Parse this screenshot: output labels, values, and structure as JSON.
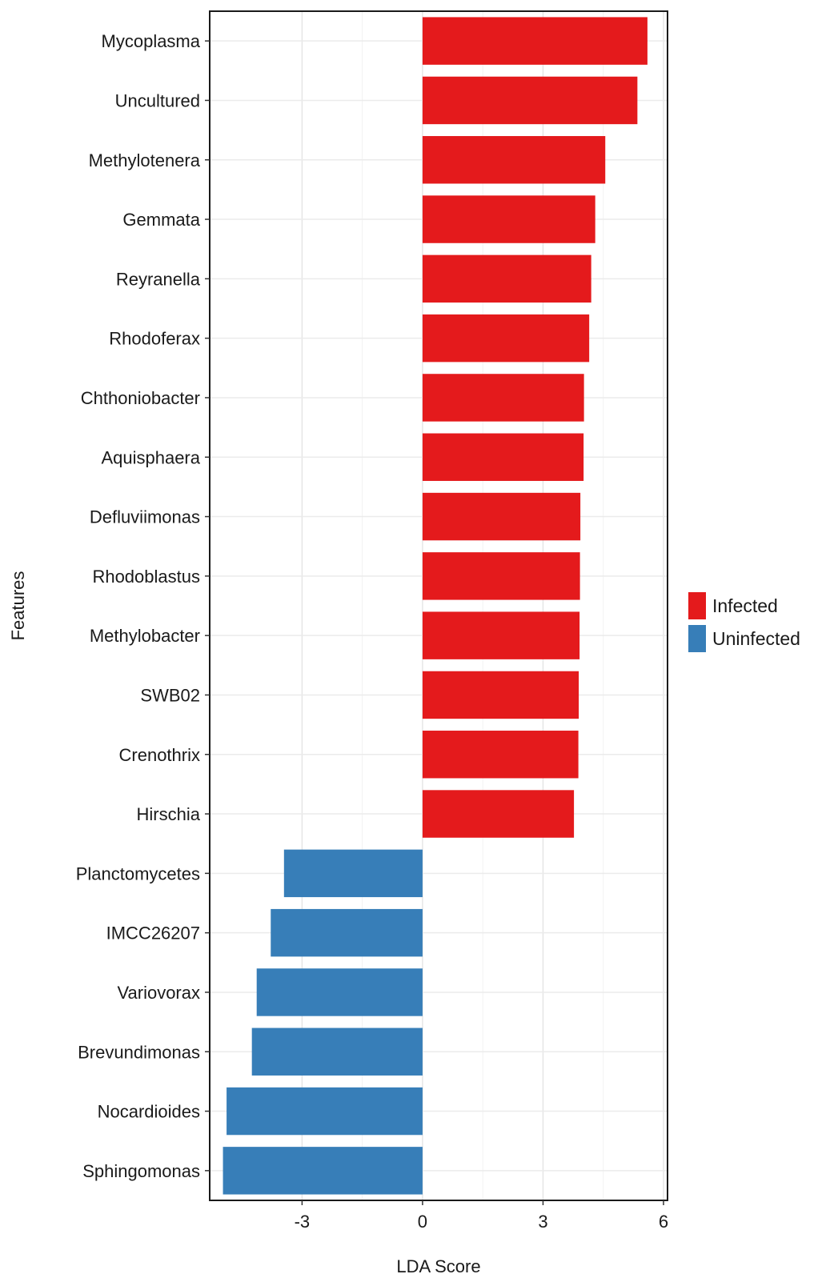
{
  "chart_data": {
    "type": "bar",
    "orientation": "horizontal",
    "xlabel": "LDA Score",
    "ylabel": "Features",
    "xlim": [
      -5.3,
      6.1
    ],
    "xticks": [
      -3,
      0,
      3,
      6
    ],
    "grid": true,
    "legend_position": "right",
    "categories": [
      "Mycoplasma",
      "Uncultured",
      "Methylotenera",
      "Gemmata",
      "Reyranella",
      "Rhodoferax",
      "Chthoniobacter",
      "Aquisphaera",
      "Defluviimonas",
      "Rhodoblastus",
      "Methylobacter",
      "SWB02",
      "Crenothrix",
      "Hirschia",
      "Planctomycetes",
      "IMCC26207",
      "Variovorax",
      "Brevundimonas",
      "Nocardioides",
      "Sphingomonas"
    ],
    "values": [
      5.6,
      5.35,
      4.55,
      4.3,
      4.2,
      4.15,
      4.02,
      4.01,
      3.93,
      3.92,
      3.91,
      3.89,
      3.88,
      3.77,
      -3.45,
      -3.78,
      -4.13,
      -4.25,
      -4.88,
      -4.97
    ],
    "groups": [
      "Infected",
      "Infected",
      "Infected",
      "Infected",
      "Infected",
      "Infected",
      "Infected",
      "Infected",
      "Infected",
      "Infected",
      "Infected",
      "Infected",
      "Infected",
      "Infected",
      "Uninfected",
      "Uninfected",
      "Uninfected",
      "Uninfected",
      "Uninfected",
      "Uninfected"
    ],
    "legend": [
      {
        "name": "Infected",
        "color": "#e41a1c"
      },
      {
        "name": "Uninfected",
        "color": "#377eb8"
      }
    ]
  }
}
